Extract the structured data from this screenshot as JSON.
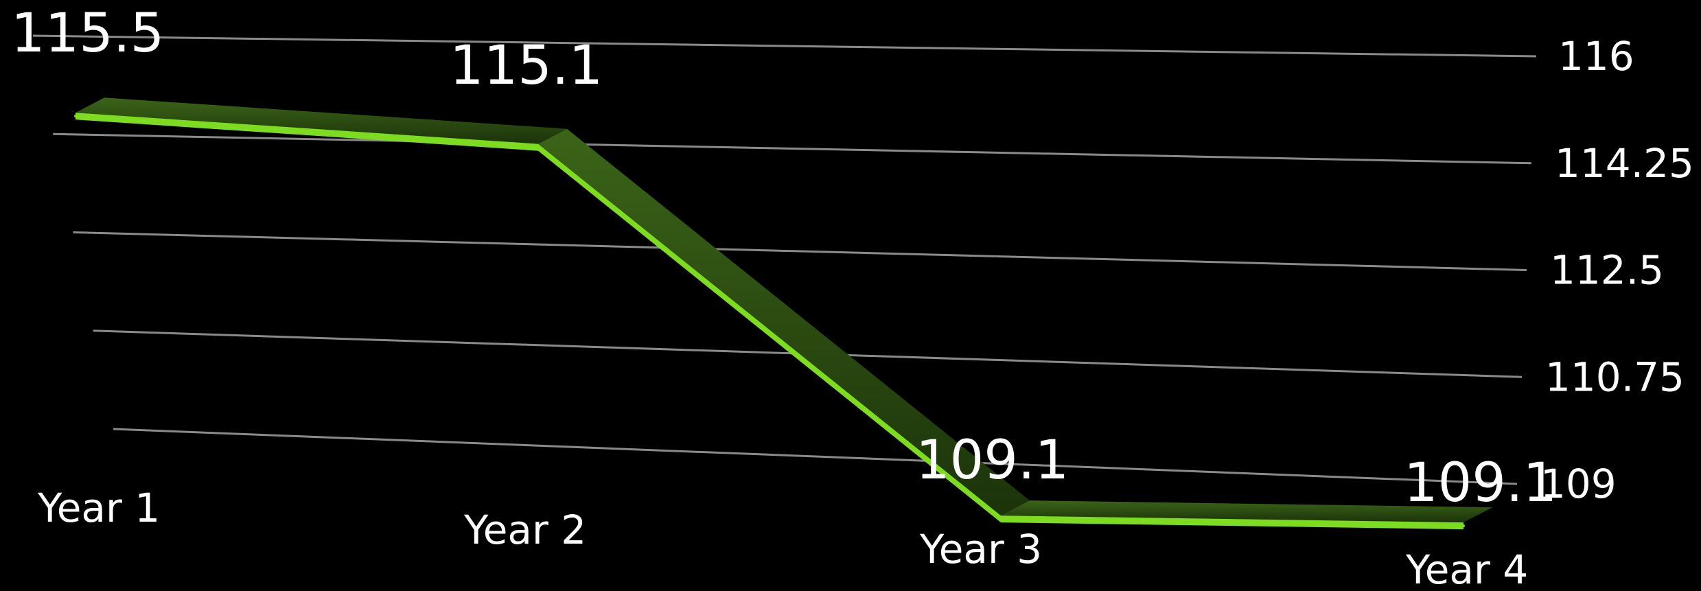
{
  "chart_data": {
    "type": "line",
    "categories": [
      "Year 1",
      "Year 2",
      "Year 3",
      "Year 4"
    ],
    "series": [
      {
        "values": [
          115.5,
          115.1,
          109.1,
          109.1
        ]
      }
    ],
    "data_labels": [
      "115.5",
      "115.1",
      "109.1",
      "109.1"
    ],
    "y_ticks": [
      109,
      110.75,
      112.5,
      114.25,
      116
    ],
    "y_tick_labels": [
      "109",
      "110.75",
      "112.5",
      "114.25",
      "116"
    ],
    "ylim": [
      109,
      116
    ],
    "grid": true,
    "colors": {
      "background": "#000000",
      "line_face": "#2e4f12",
      "line_face_dark": "#1f3a0b",
      "line_edge": "#7ddc1f",
      "grid": "#8a8a8a",
      "text": "#ffffff"
    }
  }
}
